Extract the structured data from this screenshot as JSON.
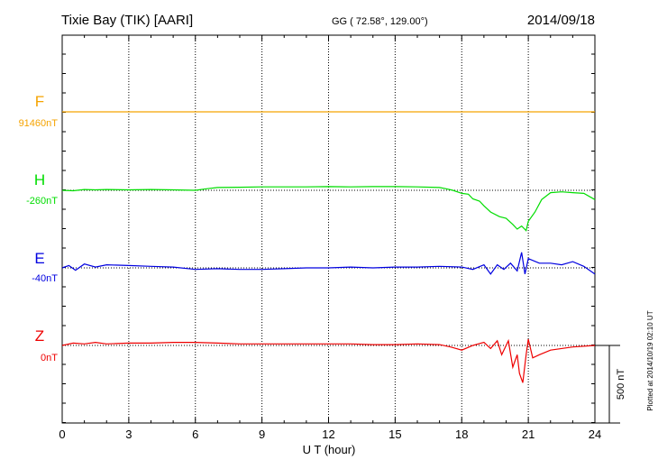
{
  "header": {
    "station": "Tixie Bay (TIK)  [AARI]",
    "coords": "GG ( 72.58°, 129.00°)",
    "date": "2014/09/18"
  },
  "side_note": "Plotted at 2014/10/19 02:10 UT",
  "chart_data": {
    "type": "line",
    "xlabel": "U T (hour)",
    "xlim": [
      0,
      24
    ],
    "xticks": [
      0,
      3,
      6,
      9,
      12,
      15,
      18,
      21,
      24
    ],
    "grid": true,
    "scale_bar": {
      "label": "500 nT",
      "value_nT": 500
    },
    "series": [
      {
        "name": "F",
        "baseline_label": "91460nT",
        "baseline_nT": 91460,
        "color": "#f5a300",
        "points": [
          [
            0,
            0
          ],
          [
            24,
            0
          ]
        ]
      },
      {
        "name": "H",
        "baseline_label": "-260nT",
        "baseline_nT": -260,
        "color": "#00dd00",
        "points": [
          [
            0,
            0
          ],
          [
            0.5,
            -3
          ],
          [
            1,
            5
          ],
          [
            1.5,
            3
          ],
          [
            2,
            5
          ],
          [
            3,
            3
          ],
          [
            4,
            5
          ],
          [
            5,
            3
          ],
          [
            6,
            0
          ],
          [
            6.5,
            10
          ],
          [
            7,
            18
          ],
          [
            8,
            20
          ],
          [
            9,
            22
          ],
          [
            10,
            22
          ],
          [
            11,
            22
          ],
          [
            12,
            24
          ],
          [
            13,
            22
          ],
          [
            14,
            24
          ],
          [
            15,
            24
          ],
          [
            16,
            22
          ],
          [
            17,
            18
          ],
          [
            17.3,
            10
          ],
          [
            17.6,
            0
          ],
          [
            18,
            -20
          ],
          [
            18.3,
            -25
          ],
          [
            18.5,
            -55
          ],
          [
            18.8,
            -70
          ],
          [
            19,
            -100
          ],
          [
            19.3,
            -140
          ],
          [
            19.7,
            -170
          ],
          [
            20,
            -180
          ],
          [
            20.3,
            -220
          ],
          [
            20.5,
            -250
          ],
          [
            20.7,
            -230
          ],
          [
            20.9,
            -260
          ],
          [
            21,
            -200
          ],
          [
            21.3,
            -140
          ],
          [
            21.6,
            -60
          ],
          [
            22,
            -15
          ],
          [
            22.5,
            -10
          ],
          [
            23,
            -15
          ],
          [
            23.5,
            -20
          ],
          [
            24,
            -60
          ]
        ]
      },
      {
        "name": "E",
        "baseline_label": "-40nT",
        "baseline_nT": -40,
        "color": "#0000e0",
        "points": [
          [
            0,
            0
          ],
          [
            0.3,
            15
          ],
          [
            0.6,
            -15
          ],
          [
            1,
            25
          ],
          [
            1.5,
            5
          ],
          [
            2,
            20
          ],
          [
            3,
            15
          ],
          [
            4,
            10
          ],
          [
            5,
            5
          ],
          [
            6,
            -10
          ],
          [
            7,
            -5
          ],
          [
            8,
            -10
          ],
          [
            9,
            -10
          ],
          [
            10,
            -5
          ],
          [
            11,
            0
          ],
          [
            12,
            0
          ],
          [
            13,
            5
          ],
          [
            14,
            0
          ],
          [
            15,
            5
          ],
          [
            16,
            5
          ],
          [
            17,
            10
          ],
          [
            18,
            5
          ],
          [
            18.5,
            -10
          ],
          [
            19,
            20
          ],
          [
            19.3,
            -40
          ],
          [
            19.6,
            20
          ],
          [
            19.9,
            -10
          ],
          [
            20.2,
            30
          ],
          [
            20.5,
            -20
          ],
          [
            20.7,
            100
          ],
          [
            20.85,
            -40
          ],
          [
            21,
            60
          ],
          [
            21.5,
            30
          ],
          [
            22,
            30
          ],
          [
            22.5,
            20
          ],
          [
            23,
            40
          ],
          [
            23.5,
            10
          ],
          [
            24,
            -40
          ]
        ]
      },
      {
        "name": "Z",
        "baseline_label": "0nT",
        "baseline_nT": 0,
        "color": "#ee0000",
        "points": [
          [
            0,
            0
          ],
          [
            0.5,
            15
          ],
          [
            1,
            10
          ],
          [
            1.5,
            20
          ],
          [
            2,
            10
          ],
          [
            3,
            15
          ],
          [
            4,
            15
          ],
          [
            5,
            20
          ],
          [
            6,
            20
          ],
          [
            7,
            15
          ],
          [
            8,
            10
          ],
          [
            9,
            10
          ],
          [
            10,
            10
          ],
          [
            11,
            10
          ],
          [
            12,
            10
          ],
          [
            13,
            10
          ],
          [
            14,
            5
          ],
          [
            15,
            5
          ],
          [
            16,
            10
          ],
          [
            17,
            5
          ],
          [
            17.5,
            -10
          ],
          [
            18,
            -30
          ],
          [
            18.5,
            0
          ],
          [
            19,
            20
          ],
          [
            19.3,
            -20
          ],
          [
            19.6,
            30
          ],
          [
            19.8,
            -60
          ],
          [
            20.1,
            30
          ],
          [
            20.3,
            -140
          ],
          [
            20.5,
            -60
          ],
          [
            20.6,
            -180
          ],
          [
            20.75,
            -240
          ],
          [
            20.9,
            -60
          ],
          [
            21,
            40
          ],
          [
            21.2,
            -80
          ],
          [
            21.5,
            -60
          ],
          [
            22,
            -30
          ],
          [
            23,
            -10
          ],
          [
            24,
            0
          ]
        ]
      }
    ]
  }
}
